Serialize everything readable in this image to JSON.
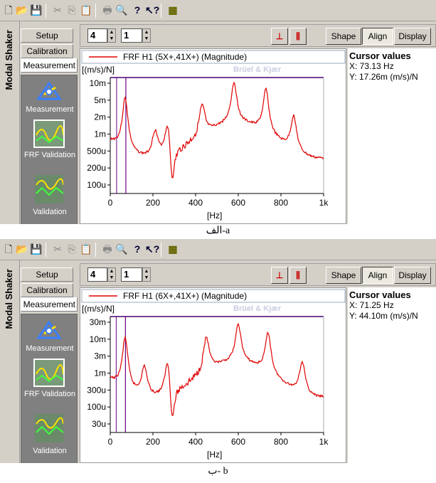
{
  "panels": [
    {
      "sidebar": {
        "title": "Modal Shaker",
        "tabs": [
          "Setup",
          "Calibration",
          "Measurement"
        ],
        "items": [
          "Measurement",
          "FRF Validation",
          "Validation"
        ]
      },
      "controls": {
        "spin1": "4",
        "spin2": "1",
        "shape": "Shape",
        "align": "Align",
        "display": "Display"
      },
      "graph": {
        "legend": "FRF H1 (5X+,41X+) (Magnitude)",
        "brand": "Brüel & Kjær",
        "ylabel": "[(m/s)/N]",
        "xlabel": "[Hz]",
        "yticks": [
          "10m",
          "5m",
          "2m",
          "1m",
          "500u",
          "200u",
          "100u"
        ],
        "xticks": [
          "0",
          "200",
          "400",
          "600",
          "800",
          "1k"
        ]
      },
      "cursor": {
        "title": "Cursor values",
        "x": "X: 73.13 Hz",
        "y": "Y: 17.26m (m/s)/N"
      },
      "caption": "الف-a"
    },
    {
      "sidebar": {
        "title": "Modal Shaker",
        "tabs": [
          "Setup",
          "Calibration",
          "Measurement"
        ],
        "items": [
          "Measurement",
          "FRF Validation",
          "Validation"
        ]
      },
      "controls": {
        "spin1": "4",
        "spin2": "1",
        "shape": "Shape",
        "align": "Align",
        "display": "Display"
      },
      "graph": {
        "legend": "FRF H1 (6X+,41X+) (Magnitude)",
        "brand": "Brüel & Kjær",
        "ylabel": "[(m/s)/N]",
        "xlabel": "[Hz]",
        "yticks": [
          "30m",
          "10m",
          "3m",
          "1m",
          "300u",
          "100u",
          "30u"
        ],
        "xticks": [
          "0",
          "200",
          "400",
          "600",
          "800",
          "1k"
        ]
      },
      "cursor": {
        "title": "Cursor values",
        "x": "X: 71.25 Hz",
        "y": "Y: 44.10m (m/s)/N"
      },
      "caption": "ب- b"
    }
  ],
  "toolbar": {
    "icons": [
      "new-icon",
      "open-icon",
      "save-icon",
      "cut-icon",
      "copy-icon",
      "paste-icon",
      "print-icon",
      "print-preview-icon",
      "help-icon",
      "context-help-icon",
      "app-icon"
    ]
  },
  "colors": {
    "curve": "#e00000",
    "axis": "#4b0073",
    "cursor": "#6a0080"
  }
}
